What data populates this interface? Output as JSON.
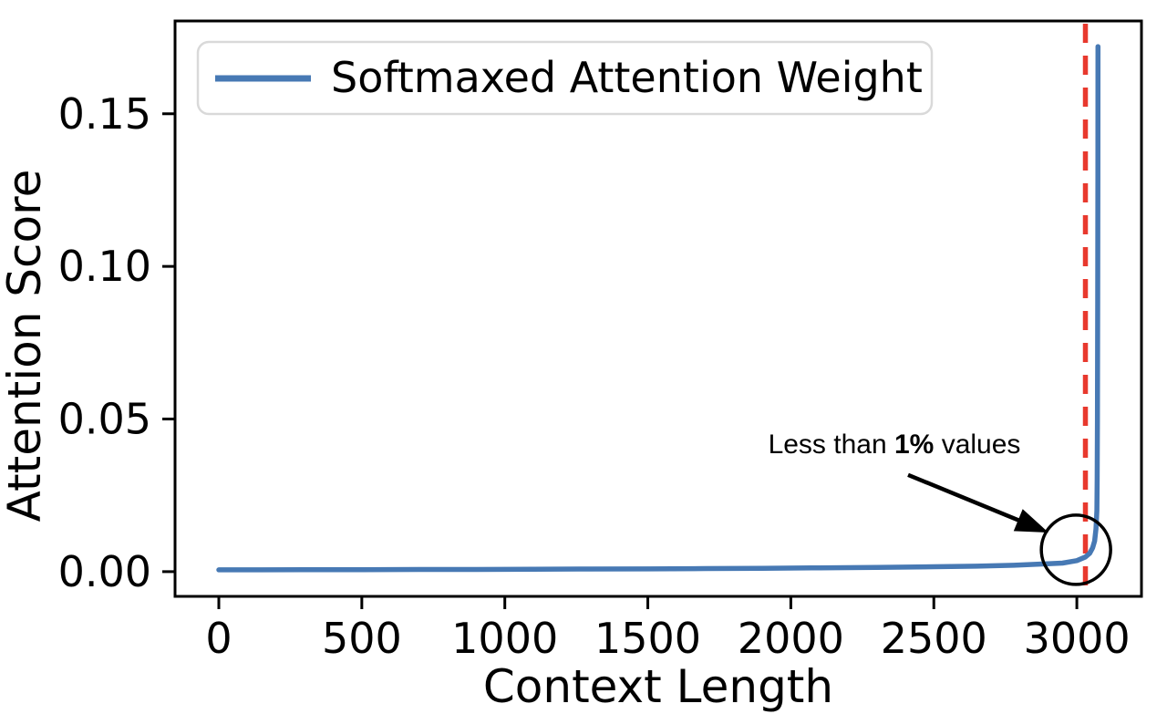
{
  "figure": {
    "background": "#ffffff",
    "spine_color": "#000000"
  },
  "chart_data": {
    "type": "line",
    "title": "",
    "xlabel": "Context Length",
    "ylabel": "Attention Score",
    "xlim": [
      -153,
      3226
    ],
    "ylim": [
      -0.0081,
      0.1804
    ],
    "grid": false,
    "x_ticks": {
      "values": [
        0,
        500,
        1000,
        1500,
        2000,
        2500,
        3000
      ],
      "labels": [
        "0",
        "500",
        "1000",
        "1500",
        "2000",
        "2500",
        "3000"
      ]
    },
    "y_ticks": {
      "values": [
        0.0,
        0.05,
        0.1,
        0.15
      ],
      "labels": [
        "0.00",
        "0.05",
        "0.10",
        "0.15"
      ]
    },
    "legend": {
      "position": "upper left",
      "border_color": "#d9d9d9",
      "fill": "#ffffff"
    },
    "series": [
      {
        "name": "Softmaxed Attention Weight",
        "color": "#4779b4",
        "line_width": 5.5,
        "points": [
          [
            0,
            0.0006
          ],
          [
            150,
            0.0006
          ],
          [
            300,
            0.00062
          ],
          [
            500,
            0.00065
          ],
          [
            700,
            0.0007
          ],
          [
            900,
            0.00072
          ],
          [
            1100,
            0.00078
          ],
          [
            1300,
            0.00085
          ],
          [
            1500,
            0.0009
          ],
          [
            1700,
            0.001
          ],
          [
            1900,
            0.0011
          ],
          [
            2100,
            0.00125
          ],
          [
            2300,
            0.0014
          ],
          [
            2500,
            0.0016
          ],
          [
            2650,
            0.0018
          ],
          [
            2780,
            0.0021
          ],
          [
            2880,
            0.0025
          ],
          [
            2950,
            0.0028
          ],
          [
            3000,
            0.0036
          ],
          [
            3030,
            0.0048
          ],
          [
            3045,
            0.006
          ],
          [
            3055,
            0.0078
          ],
          [
            3062,
            0.01
          ],
          [
            3067,
            0.014
          ],
          [
            3070,
            0.02
          ],
          [
            3071,
            0.03
          ],
          [
            3072,
            0.05
          ],
          [
            3073,
            0.09
          ],
          [
            3073.5,
            0.13
          ],
          [
            3074,
            0.172
          ]
        ],
        "peak_value": 0.172
      }
    ],
    "vline": {
      "x": 3030,
      "color": "#e8392e",
      "style": "dashed",
      "width": 5.5
    },
    "annotation": {
      "prefix": "Less than ",
      "bold": "1%",
      "suffix": " values",
      "text_pos": [
        2362,
        0.0388
      ],
      "arrow": {
        "from": [
          2410,
          0.0317
        ],
        "to": [
          2901,
          0.0128
        ],
        "color": "#000000",
        "width": 4.5
      },
      "circle": {
        "center": [
          2997,
          0.00717
        ],
        "radius_px": 38,
        "color": "#000000",
        "stroke_width": 3.5
      }
    }
  }
}
